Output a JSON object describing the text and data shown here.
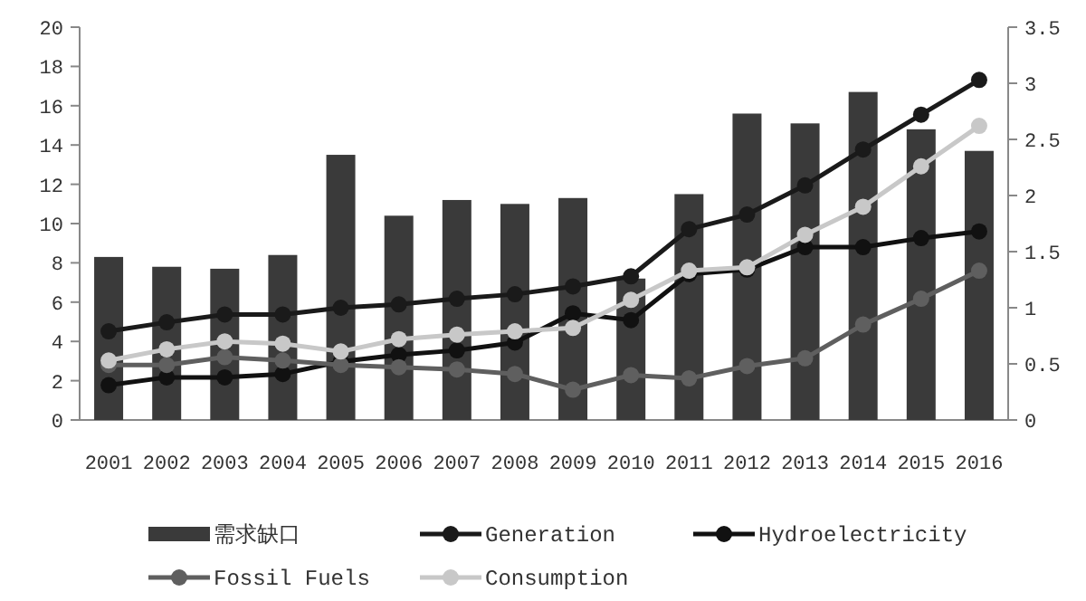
{
  "chart_data": {
    "type": "bar",
    "categories": [
      "2001",
      "2002",
      "2003",
      "2004",
      "2005",
      "2006",
      "2007",
      "2008",
      "2009",
      "2010",
      "2011",
      "2012",
      "2013",
      "2014",
      "2015",
      "2016"
    ],
    "series": [
      {
        "name": "需求缺口",
        "color": "#3a3a3a",
        "values": [
          8.3,
          7.8,
          7.7,
          8.4,
          13.5,
          10.4,
          11.2,
          11.0,
          11.3,
          7.2,
          11.5,
          15.6,
          15.1,
          16.7,
          14.8,
          13.7
        ]
      },
      {
        "name": "Generation",
        "type": "line",
        "axis": "y2",
        "color": "#1a1a1a",
        "values": [
          0.79,
          0.87,
          0.94,
          0.94,
          1.0,
          1.03,
          1.08,
          1.12,
          1.19,
          1.28,
          1.7,
          1.83,
          2.09,
          2.41,
          2.72,
          3.03
        ]
      },
      {
        "name": "Hydroelectricity",
        "type": "line",
        "axis": "y2",
        "color": "#111111",
        "values": [
          0.31,
          0.38,
          0.38,
          0.41,
          0.52,
          0.58,
          0.62,
          0.69,
          0.95,
          0.89,
          1.3,
          1.34,
          1.54,
          1.54,
          1.62,
          1.68
        ]
      },
      {
        "name": "Fossil Fuels",
        "type": "line",
        "axis": "y2",
        "color": "#5f5f5f",
        "values": [
          0.49,
          0.49,
          0.56,
          0.53,
          0.49,
          0.47,
          0.45,
          0.41,
          0.27,
          0.4,
          0.37,
          0.48,
          0.55,
          0.85,
          1.08,
          1.33
        ]
      },
      {
        "name": "Consumption",
        "type": "line",
        "axis": "y2",
        "color": "#c8c8c8",
        "values": [
          0.53,
          0.63,
          0.7,
          0.68,
          0.61,
          0.72,
          0.76,
          0.79,
          0.82,
          1.07,
          1.33,
          1.36,
          1.65,
          1.9,
          2.26,
          2.62
        ]
      }
    ],
    "ylim": [
      0,
      20
    ],
    "yticks": [
      0,
      2,
      4,
      6,
      8,
      10,
      12,
      14,
      16,
      18,
      20
    ],
    "y2lim": [
      0,
      3.5
    ],
    "y2ticks": [
      0,
      {
        "value": 0.5,
        "label": "0.5"
      },
      1,
      {
        "value": 1.5,
        "label": "1.5"
      },
      2,
      {
        "value": 2.5,
        "label": "2.5"
      },
      3,
      {
        "value": 3.5,
        "label": "3.5"
      }
    ],
    "marker": "circle",
    "grid": false,
    "legend": "bottom"
  }
}
